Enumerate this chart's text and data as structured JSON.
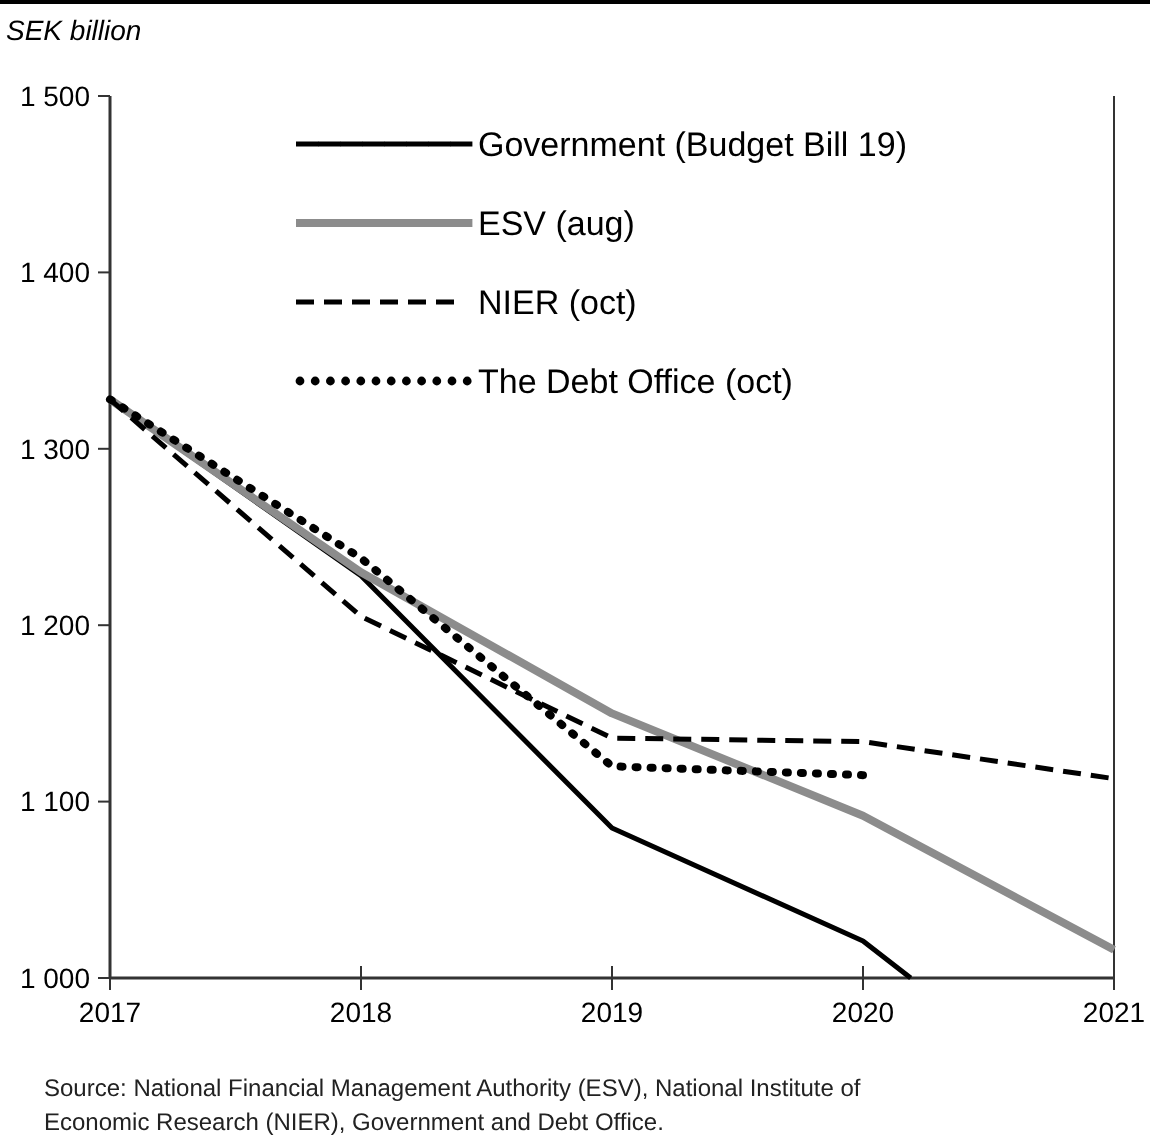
{
  "chart_data": {
    "type": "line",
    "ylabel": "SEK billion",
    "xlim": [
      2017,
      2021
    ],
    "xticks": [
      2017,
      2018,
      2019,
      2020,
      2021
    ],
    "ylim": [
      1000,
      1500
    ],
    "yticks": [
      {
        "value": 1000,
        "label": "1 000"
      },
      {
        "value": 1100,
        "label": "1 100"
      },
      {
        "value": 1200,
        "label": "1 200"
      },
      {
        "value": 1300,
        "label": "1 300"
      },
      {
        "value": 1400,
        "label": "1 400"
      },
      {
        "value": 1500,
        "label": "1 500"
      }
    ],
    "legend": "top",
    "grid": false,
    "series": [
      {
        "name": "Government (Budget Bill 19)",
        "color": "#000000",
        "line_style": "solid",
        "x": [
          2017,
          2018,
          2019,
          2020,
          2020.19
        ],
        "values": [
          1328,
          1228,
          1085,
          1021,
          1000
        ]
      },
      {
        "name": "ESV (aug)",
        "color": "#8c8c8c",
        "line_style": "solid",
        "x": [
          2017,
          2018,
          2019,
          2020,
          2021
        ],
        "values": [
          1328,
          1230,
          1150,
          1092,
          1016
        ]
      },
      {
        "name": "NIER (oct)",
        "color": "#000000",
        "line_style": "dashed",
        "x": [
          2017,
          2018,
          2019,
          2020,
          2021
        ],
        "values": [
          1328,
          1205,
          1136,
          1134,
          1113
        ]
      },
      {
        "name": "The Debt Office (oct)",
        "color": "#000000",
        "line_style": "dotted",
        "x": [
          2017,
          2018,
          2019,
          2020
        ],
        "values": [
          1328,
          1238,
          1120,
          1115
        ]
      }
    ],
    "annotations": [
      "Source: National Financial Management Authority (ESV), National Institute of Economic Research (NIER), Government and Debt Office."
    ]
  }
}
